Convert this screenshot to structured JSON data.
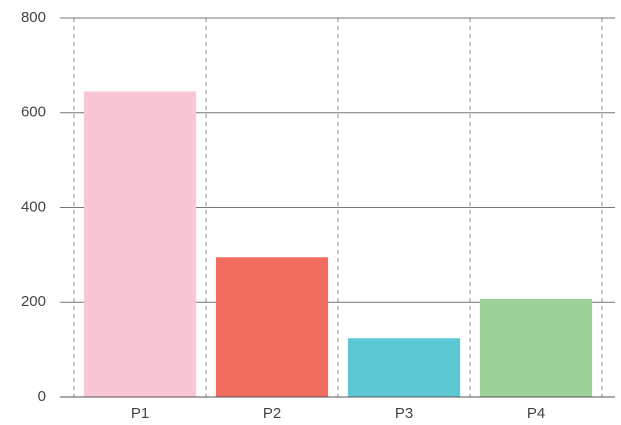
{
  "chart_data": {
    "type": "bar",
    "categories": [
      "P1",
      "P2",
      "P3",
      "P4"
    ],
    "values": [
      645,
      295,
      124,
      207
    ],
    "colors": [
      "#f9c6d3",
      "#f26b5f",
      "#5bc8d3",
      "#9dd19a"
    ],
    "ylim": [
      0,
      800
    ],
    "yticks": [
      0,
      200,
      400,
      600,
      800
    ],
    "grid": true
  }
}
